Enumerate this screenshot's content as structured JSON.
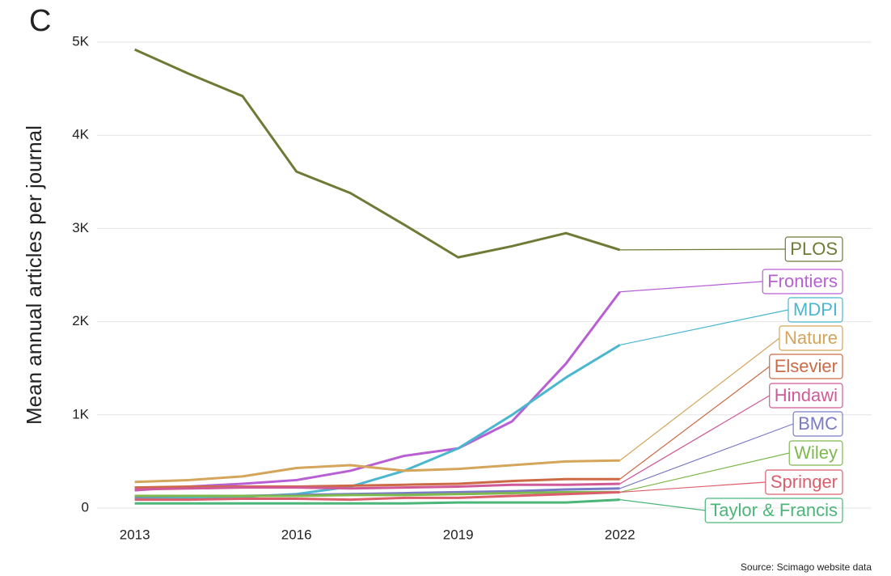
{
  "chart_data": {
    "type": "line",
    "title": "C",
    "y_label": "Mean annual articles per journal",
    "source": "Source: Scimago website data",
    "x": [
      2013,
      2014,
      2015,
      2016,
      2017,
      2018,
      2019,
      2020,
      2021,
      2022
    ],
    "xlim": [
      2012.3,
      2026.7
    ],
    "xticks": [
      2013,
      2016,
      2019,
      2022
    ],
    "ylim": [
      0,
      5000
    ],
    "yticks": [
      0,
      {
        "value": 1000,
        "label": "1K"
      },
      {
        "value": 2000,
        "label": "2K"
      },
      {
        "value": 3000,
        "label": "3K"
      },
      {
        "value": 4000,
        "label": "4K"
      },
      {
        "value": 5000,
        "label": "5K"
      }
    ],
    "grid": true,
    "series": [
      {
        "name": "PLOS",
        "color": "#6f7a36",
        "values": [
          4920,
          4660,
          4420,
          3610,
          3380,
          3040,
          2690,
          2810,
          2950,
          2770
        ]
      },
      {
        "name": "Frontiers",
        "color": "#b95fd4",
        "values": [
          190,
          230,
          260,
          300,
          400,
          560,
          640,
          930,
          1550,
          2320
        ]
      },
      {
        "name": "MDPI",
        "color": "#4bb6d0",
        "values": [
          100,
          110,
          120,
          150,
          230,
          400,
          640,
          1000,
          1400,
          1750
        ]
      },
      {
        "name": "Nature",
        "color": "#d4a55a",
        "values": [
          280,
          300,
          340,
          430,
          460,
          400,
          420,
          460,
          500,
          510
        ]
      },
      {
        "name": "Elsevier",
        "color": "#cc6a45",
        "values": [
          220,
          230,
          230,
          230,
          240,
          250,
          260,
          290,
          310,
          310
        ]
      },
      {
        "name": "Hindawi",
        "color": "#d05a98",
        "values": [
          200,
          210,
          220,
          220,
          210,
          220,
          230,
          250,
          250,
          260
        ]
      },
      {
        "name": "BMC",
        "color": "#7a7bc7",
        "values": [
          120,
          130,
          130,
          140,
          150,
          160,
          170,
          180,
          200,
          210
        ]
      },
      {
        "name": "Wiley",
        "color": "#7fb84d",
        "values": [
          130,
          130,
          130,
          130,
          140,
          140,
          150,
          160,
          170,
          170
        ]
      },
      {
        "name": "Springer",
        "color": "#dd5e6b",
        "values": [
          90,
          90,
          100,
          100,
          90,
          110,
          110,
          130,
          150,
          170
        ]
      },
      {
        "name": "Taylor & Francis",
        "color": "#4cb67a",
        "values": [
          50,
          50,
          50,
          50,
          50,
          50,
          60,
          60,
          60,
          90
        ]
      }
    ]
  }
}
